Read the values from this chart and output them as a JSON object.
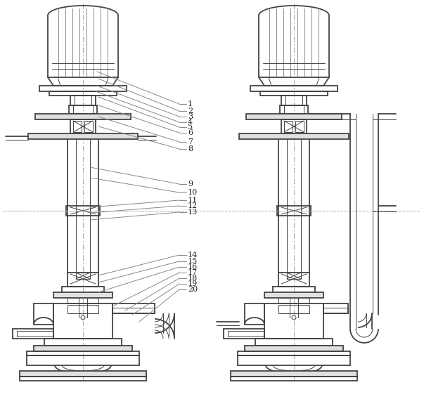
{
  "bg_color": "#ffffff",
  "lc": "#444444",
  "lc_light": "#888888",
  "lc_dash": "#aaaaaa",
  "figsize": [
    6.03,
    5.95
  ],
  "dpi": 100,
  "labels": [
    "1",
    "2",
    "3",
    "4",
    "5",
    "6",
    "7",
    "8",
    "9",
    "10",
    "11",
    "12",
    "13",
    "14",
    "15",
    "16",
    "17",
    "18",
    "19",
    "20"
  ]
}
